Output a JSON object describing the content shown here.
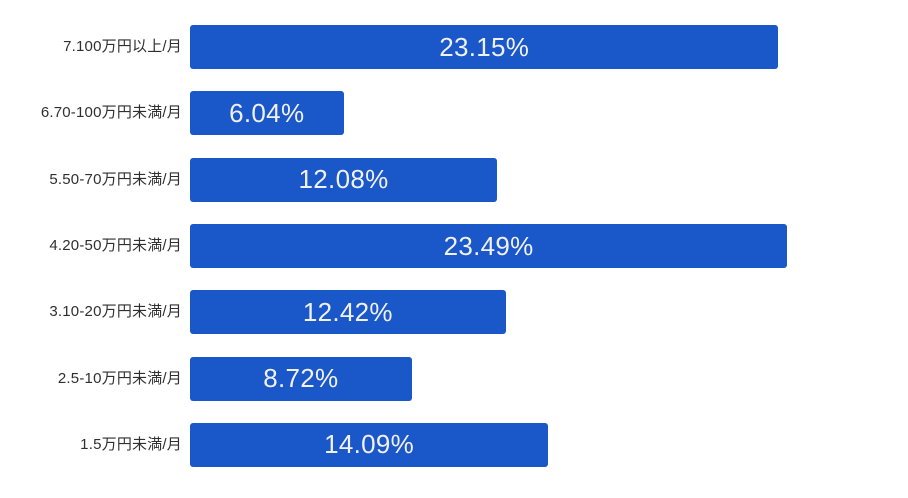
{
  "chart_data": {
    "type": "bar",
    "orientation": "horizontal",
    "title": "",
    "xlabel": "",
    "ylabel": "",
    "grid": false,
    "legend": false,
    "xlim": [
      0,
      28.2
    ],
    "bar_color": "#1a57c9",
    "value_label_color": "#f1f1f1",
    "category_label_color": "#2f2f2f",
    "categories": [
      "7.100万円以上/月",
      "6.70-100万円未満/月",
      "5.50-70万円未満/月",
      "4.20-50万円未満/月",
      "3.10-20万円未満/月",
      "2.5-10万円未満/月",
      "1.5万円未満/月"
    ],
    "values": [
      23.15,
      6.04,
      12.08,
      23.49,
      12.42,
      8.72,
      14.09
    ],
    "rows": [
      {
        "label": "7.100万円以上/月",
        "value": 23.15,
        "display": "23.15%"
      },
      {
        "label": "6.70-100万円未満/月",
        "value": 6.04,
        "display": "6.04%"
      },
      {
        "label": "5.50-70万円未満/月",
        "value": 12.08,
        "display": "12.08%"
      },
      {
        "label": "4.20-50万円未満/月",
        "value": 23.49,
        "display": "23.49%"
      },
      {
        "label": "3.10-20万円未満/月",
        "value": 12.42,
        "display": "12.42%"
      },
      {
        "label": "2.5-10万円未満/月",
        "value": 8.72,
        "display": "8.72%"
      },
      {
        "label": "1.5万円未満/月",
        "value": 14.09,
        "display": "14.09%"
      }
    ]
  }
}
